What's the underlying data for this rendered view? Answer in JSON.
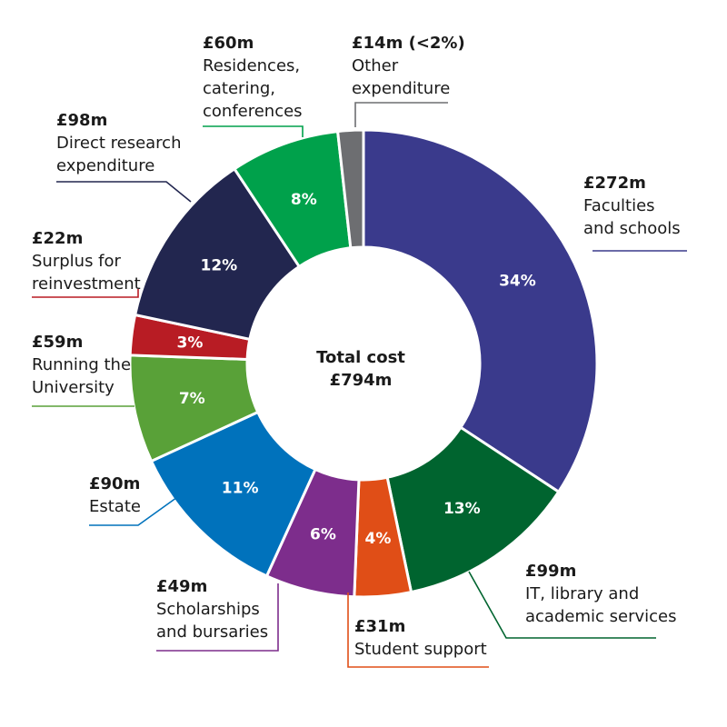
{
  "chart_data": {
    "type": "pie",
    "variant": "donut",
    "center_label": [
      "Total cost",
      "£794m"
    ],
    "slices": [
      {
        "name": "Faculties and schools",
        "amount": "£272m",
        "label_lines": [
          "Faculties",
          "and schools"
        ],
        "value": 272,
        "pct_label": "34%",
        "color": "#3a3a8c"
      },
      {
        "name": "IT, library and academic services",
        "amount": "£99m",
        "label_lines": [
          "IT, library and",
          "academic services"
        ],
        "value": 99,
        "pct_label": "13%",
        "color": "#00642f"
      },
      {
        "name": "Student support",
        "amount": "£31m",
        "label_lines": [
          "Student support"
        ],
        "value": 31,
        "pct_label": "4%",
        "color": "#e04e17"
      },
      {
        "name": "Scholarships and bursaries",
        "amount": "£49m",
        "label_lines": [
          "Scholarships",
          "and bursaries"
        ],
        "value": 49,
        "pct_label": "6%",
        "color": "#7d2d8c"
      },
      {
        "name": "Estate",
        "amount": "£90m",
        "label_lines": [
          "Estate"
        ],
        "value": 90,
        "pct_label": "11%",
        "color": "#0072bc"
      },
      {
        "name": "Running the University",
        "amount": "£59m",
        "label_lines": [
          "Running the",
          "University"
        ],
        "value": 59,
        "pct_label": "7%",
        "color": "#59a138"
      },
      {
        "name": "Surplus for reinvestment",
        "amount": "£22m",
        "label_lines": [
          "Surplus for",
          "reinvestment"
        ],
        "value": 22,
        "pct_label": "3%",
        "color": "#b81c24"
      },
      {
        "name": "Direct research expenditure",
        "amount": "£98m",
        "label_lines": [
          "Direct research",
          "expenditure"
        ],
        "value": 98,
        "pct_label": "12%",
        "color": "#22264f"
      },
      {
        "name": "Residences, catering, conferences",
        "amount": "£60m",
        "label_lines": [
          "Residences,",
          "catering,",
          "conferences"
        ],
        "value": 60,
        "pct_label": "8%",
        "color": "#00a14b"
      },
      {
        "name": "Other expenditure",
        "amount": "£14m (<2%)",
        "label_lines": [
          "Other",
          "expenditure"
        ],
        "value": 14,
        "pct_label": "",
        "color": "#6d6e71"
      }
    ]
  }
}
